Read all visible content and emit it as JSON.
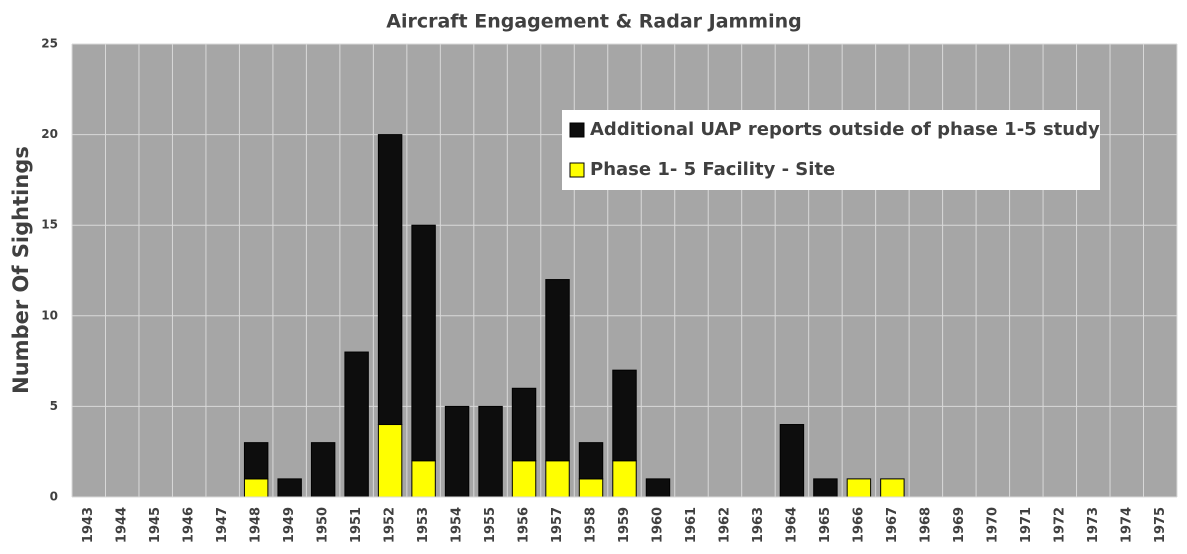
{
  "chart_data": {
    "type": "stacked-bar",
    "title": "Aircraft Engagement & Radar Jamming",
    "y_label": "Number Of Sightings",
    "categories": [
      "1943",
      "1944",
      "1945",
      "1946",
      "1947",
      "1948",
      "1949",
      "1950",
      "1951",
      "1952",
      "1953",
      "1954",
      "1955",
      "1956",
      "1957",
      "1958",
      "1959",
      "1960",
      "1961",
      "1962",
      "1963",
      "1964",
      "1965",
      "1966",
      "1967",
      "1968",
      "1969",
      "1970",
      "1971",
      "1972",
      "1973",
      "1974",
      "1975"
    ],
    "series": [
      {
        "name": "Additional UAP reports outside of phase 1-5 study",
        "color": "#0d0d0d",
        "values": [
          0,
          0,
          0,
          0,
          0,
          2,
          1,
          3,
          8,
          16,
          13,
          5,
          5,
          4,
          10,
          2,
          5,
          1,
          0,
          0,
          0,
          4,
          1,
          0,
          0,
          0,
          0,
          0,
          0,
          0,
          0,
          0,
          0
        ]
      },
      {
        "name": "Phase 1- 5 Facility - Site",
        "color": "#ffff00",
        "values": [
          0,
          0,
          0,
          0,
          0,
          1,
          0,
          0,
          0,
          4,
          2,
          0,
          0,
          2,
          2,
          1,
          2,
          0,
          0,
          0,
          0,
          0,
          0,
          1,
          1,
          0,
          0,
          0,
          0,
          0,
          0,
          0,
          0
        ]
      }
    ],
    "ylim": [
      0,
      25
    ],
    "yticks": [
      0,
      5,
      10,
      15,
      20,
      25
    ],
    "grid": true,
    "legend": "top-right"
  }
}
